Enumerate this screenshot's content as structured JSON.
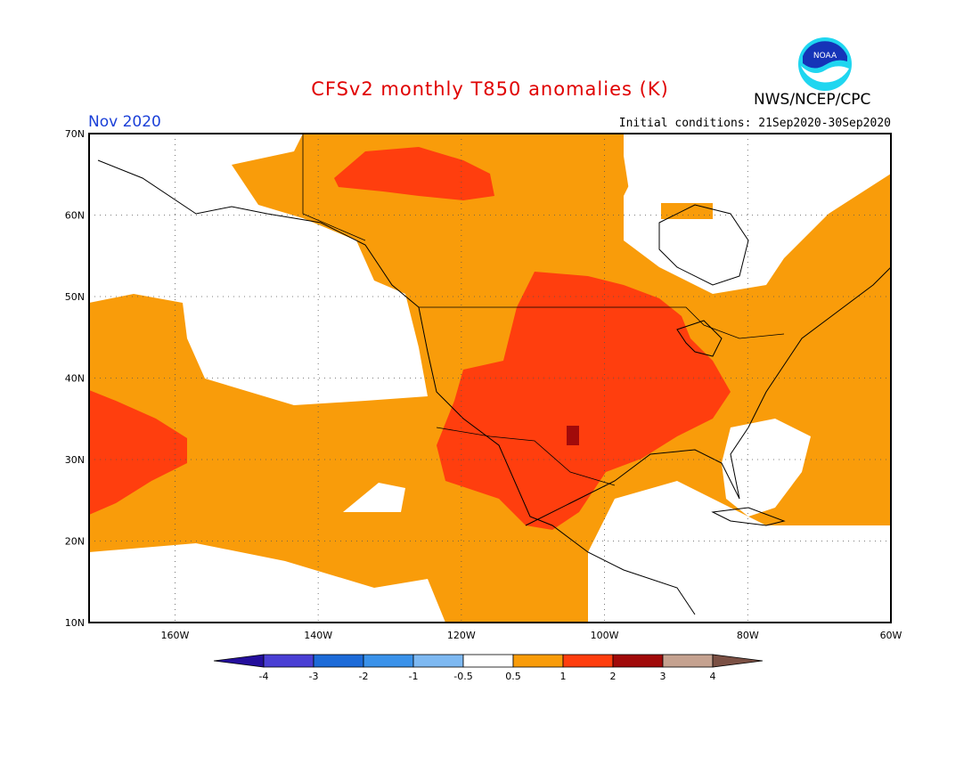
{
  "header": {
    "title": "CFSv2 monthly T850 anomalies (K)",
    "month": "Nov 2020",
    "initial_conditions": "Initial conditions: 21Sep2020-30Sep2020",
    "agency": "NWS/NCEP/CPC",
    "logo_text": "NOAA"
  },
  "map": {
    "projection": "equirectangular",
    "lon_range": [
      -172,
      -60
    ],
    "lat_range": [
      10,
      70
    ],
    "lat_ticks": [
      "70N",
      "60N",
      "50N",
      "40N",
      "30N",
      "20N",
      "10N"
    ],
    "lon_ticks": [
      "160W",
      "140W",
      "120W",
      "100W",
      "80W",
      "60W"
    ],
    "grid": "dotted"
  },
  "colorbar": {
    "labels": [
      "-4",
      "-3",
      "-2",
      "-1",
      "-0.5",
      "0.5",
      "1",
      "2",
      "3",
      "4"
    ],
    "colors": [
      "#240e9c",
      "#4a3fd4",
      "#1d6bd8",
      "#3a92ea",
      "#7eb9f2",
      "#ffffff",
      "#f99c0a",
      "#ff3e0e",
      "#a10a0a",
      "#c5a290",
      "#7b5044"
    ]
  },
  "colors": {
    "orange": "#f99c0a",
    "red": "#ff3e0e",
    "darkred": "#a10a0a"
  }
}
